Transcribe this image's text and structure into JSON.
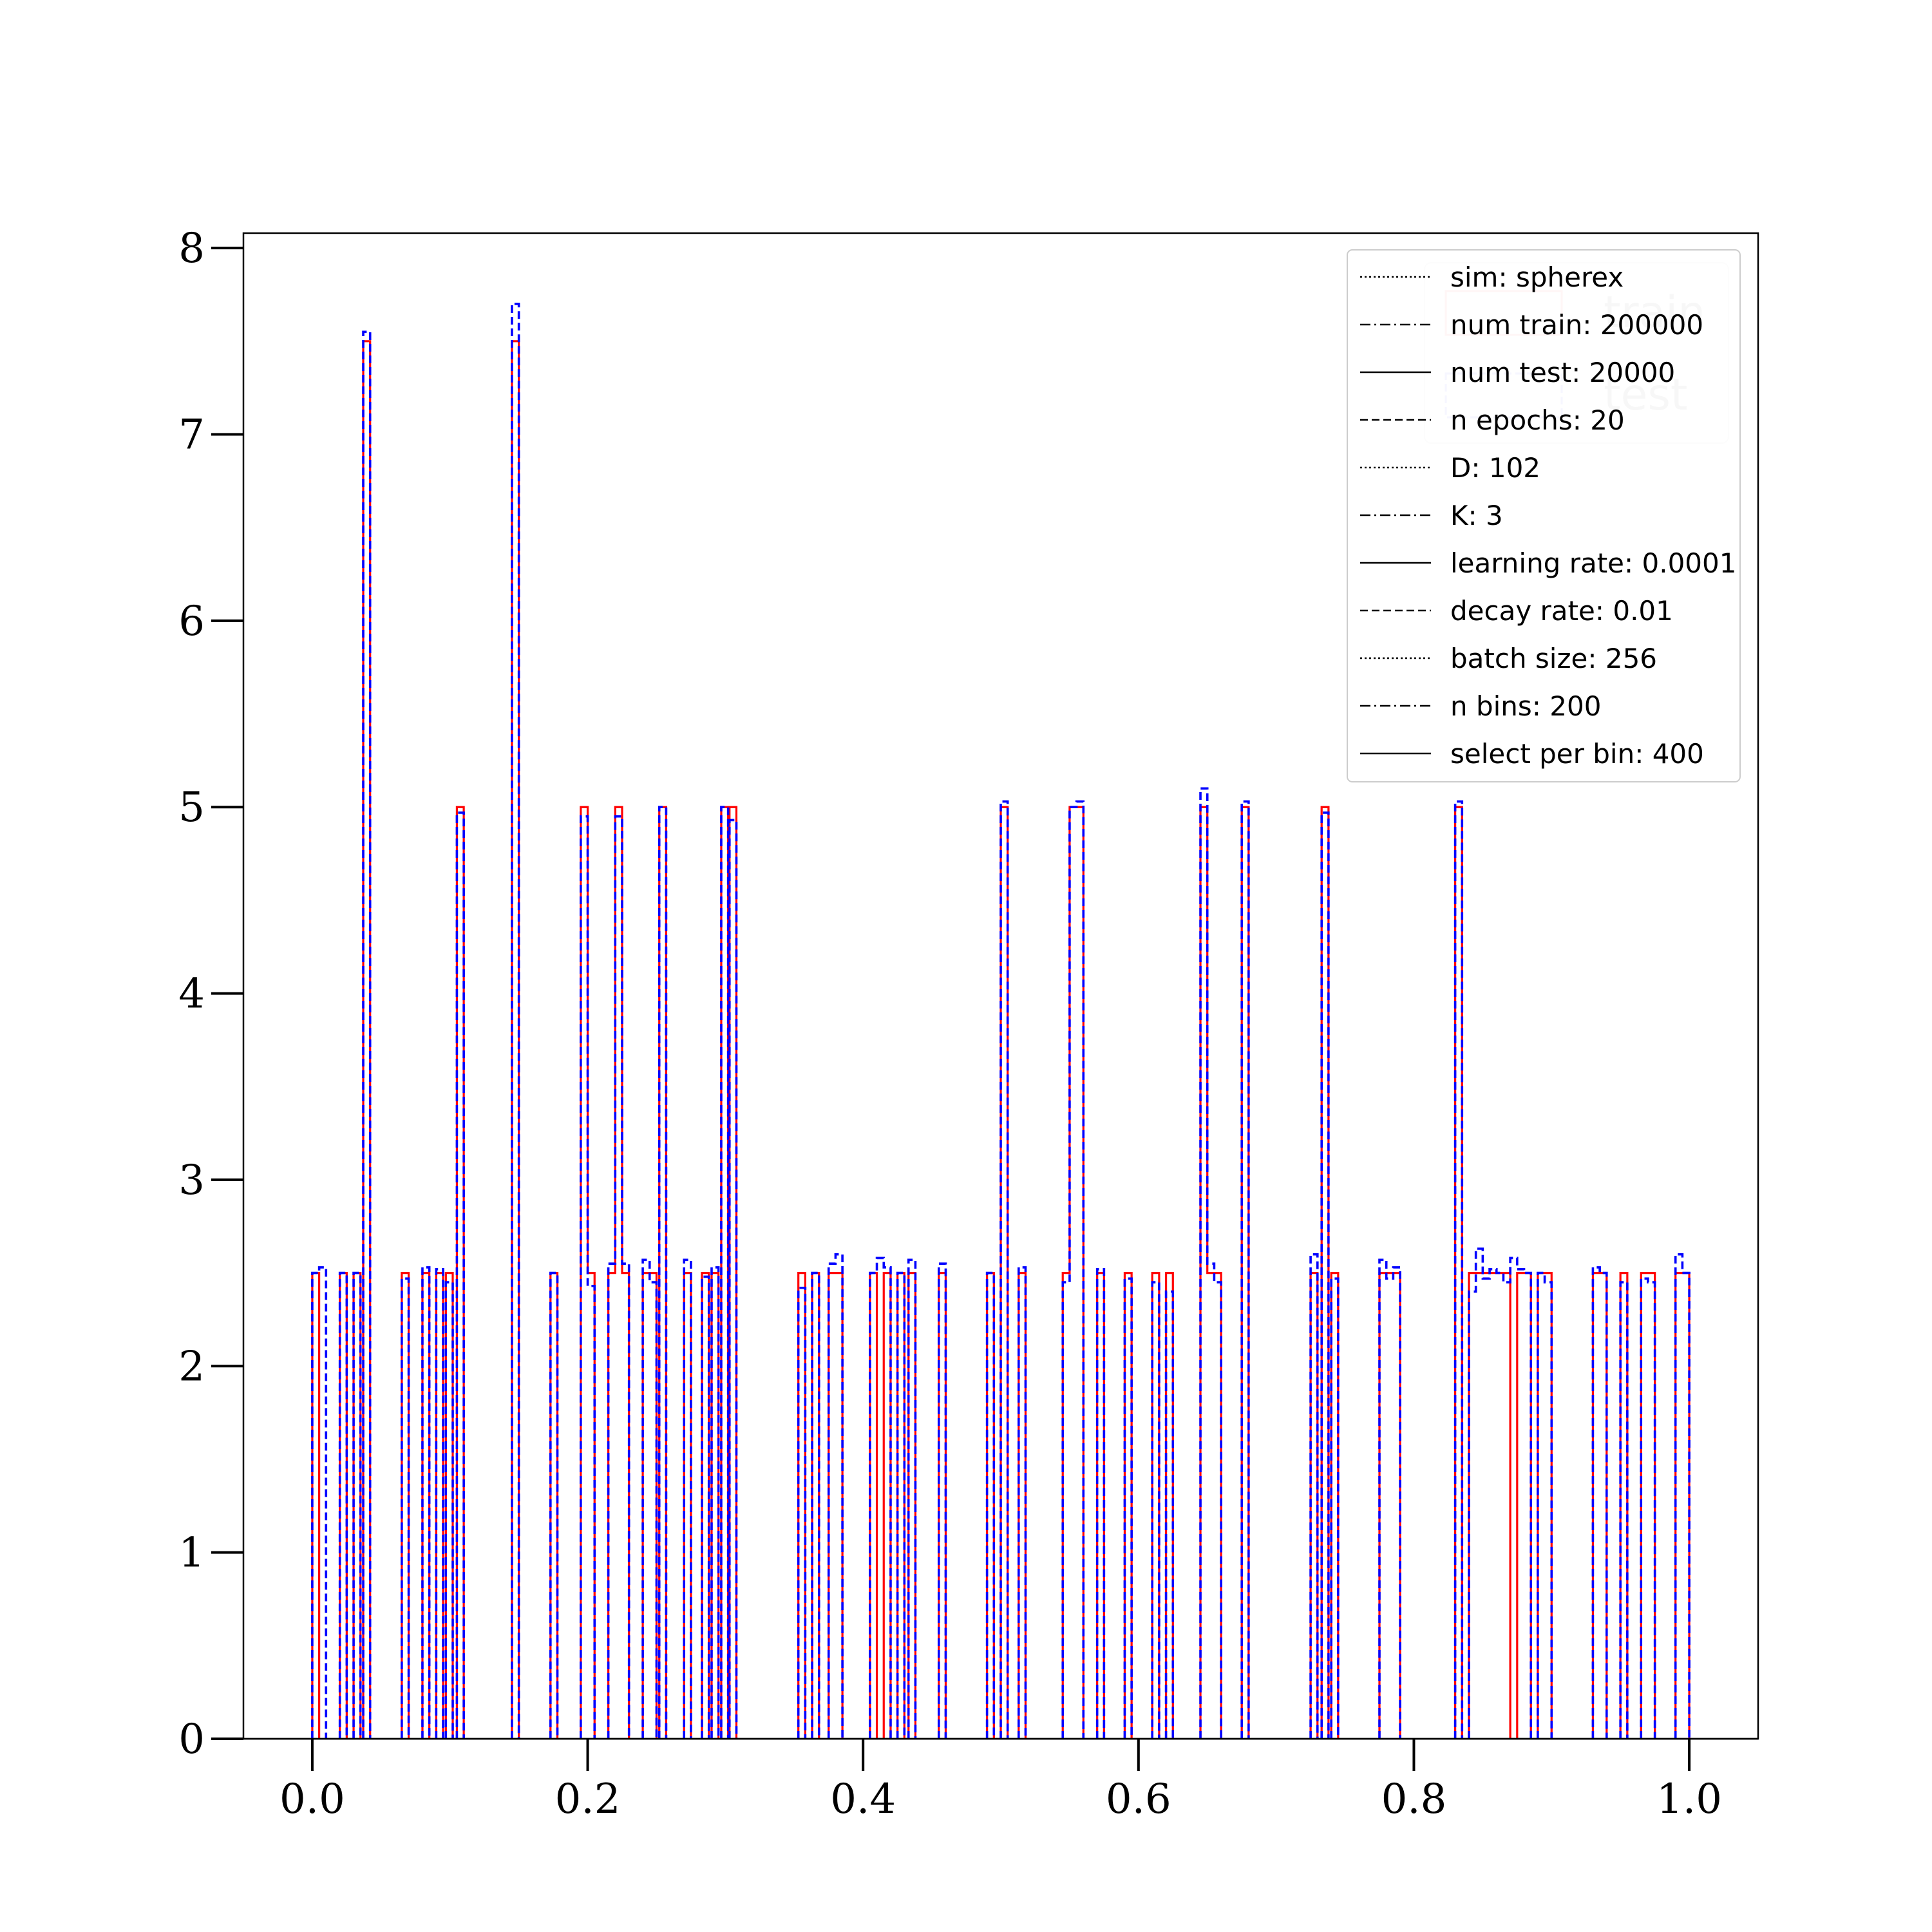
{
  "chart_data": {
    "type": "histogram",
    "x_axis": {
      "range": [
        -0.05,
        1.05
      ],
      "ticks": [
        0.0,
        0.2,
        0.4,
        0.6,
        0.8,
        1.0
      ],
      "tick_labels": [
        "0.0",
        "0.2",
        "0.4",
        "0.6",
        "0.8",
        "1.0"
      ]
    },
    "y_axis": {
      "range": [
        0,
        8.08
      ],
      "ticks": [
        0,
        1,
        2,
        3,
        4,
        5,
        6,
        7,
        8
      ],
      "tick_labels": [
        "0",
        "1",
        "2",
        "3",
        "4",
        "5",
        "6",
        "7",
        "8"
      ]
    },
    "grid": false,
    "bin_width": 0.005,
    "series": [
      {
        "name": "train",
        "color": "#ff0000",
        "line_style": "solid",
        "bins": [
          [
            0.0,
            2.5
          ],
          [
            0.02,
            2.5
          ],
          [
            0.03,
            2.5
          ],
          [
            0.037,
            7.5
          ],
          [
            0.065,
            2.5
          ],
          [
            0.08,
            2.5
          ],
          [
            0.09,
            2.5
          ],
          [
            0.097,
            2.5
          ],
          [
            0.105,
            5.0
          ],
          [
            0.145,
            7.5
          ],
          [
            0.173,
            2.5
          ],
          [
            0.195,
            5.0
          ],
          [
            0.2,
            2.5
          ],
          [
            0.215,
            2.5
          ],
          [
            0.22,
            5.0
          ],
          [
            0.225,
            2.5
          ],
          [
            0.24,
            2.5
          ],
          [
            0.245,
            2.5
          ],
          [
            0.252,
            5.0
          ],
          [
            0.27,
            2.5
          ],
          [
            0.283,
            2.5
          ],
          [
            0.29,
            2.5
          ],
          [
            0.297,
            5.0
          ],
          [
            0.303,
            5.0
          ],
          [
            0.353,
            2.5
          ],
          [
            0.363,
            2.5
          ],
          [
            0.375,
            2.5
          ],
          [
            0.38,
            2.5
          ],
          [
            0.405,
            2.5
          ],
          [
            0.415,
            2.5
          ],
          [
            0.425,
            2.5
          ],
          [
            0.433,
            2.5
          ],
          [
            0.455,
            2.5
          ],
          [
            0.49,
            2.5
          ],
          [
            0.5,
            5.0
          ],
          [
            0.513,
            2.5
          ],
          [
            0.545,
            2.5
          ],
          [
            0.55,
            5.0
          ],
          [
            0.555,
            5.0
          ],
          [
            0.57,
            2.5
          ],
          [
            0.59,
            2.5
          ],
          [
            0.61,
            2.5
          ],
          [
            0.62,
            2.5
          ],
          [
            0.645,
            5.0
          ],
          [
            0.65,
            2.5
          ],
          [
            0.655,
            2.5
          ],
          [
            0.675,
            5.0
          ],
          [
            0.725,
            2.5
          ],
          [
            0.733,
            5.0
          ],
          [
            0.74,
            2.5
          ],
          [
            0.775,
            2.5
          ],
          [
            0.78,
            2.5
          ],
          [
            0.785,
            2.5
          ],
          [
            0.83,
            5.0
          ],
          [
            0.84,
            2.5
          ],
          [
            0.845,
            2.5
          ],
          [
            0.85,
            2.5
          ],
          [
            0.855,
            2.5
          ],
          [
            0.86,
            2.5
          ],
          [
            0.865,
            2.5
          ],
          [
            0.875,
            2.5
          ],
          [
            0.88,
            2.5
          ],
          [
            0.89,
            2.5
          ],
          [
            0.895,
            2.5
          ],
          [
            0.93,
            2.5
          ],
          [
            0.935,
            2.5
          ],
          [
            0.95,
            2.5
          ],
          [
            0.965,
            2.5
          ],
          [
            0.97,
            2.5
          ],
          [
            0.99,
            2.5
          ],
          [
            0.995,
            2.5
          ]
        ]
      },
      {
        "name": "test",
        "color": "#0000ff",
        "line_style": "dashed",
        "bins": [
          [
            0.0,
            2.5
          ],
          [
            0.005,
            2.53
          ],
          [
            0.02,
            2.5
          ],
          [
            0.03,
            2.5
          ],
          [
            0.037,
            7.55
          ],
          [
            0.065,
            2.47
          ],
          [
            0.08,
            2.53
          ],
          [
            0.09,
            2.52
          ],
          [
            0.097,
            2.45
          ],
          [
            0.105,
            4.97
          ],
          [
            0.145,
            7.7
          ],
          [
            0.173,
            2.5
          ],
          [
            0.195,
            4.95
          ],
          [
            0.2,
            2.43
          ],
          [
            0.215,
            2.55
          ],
          [
            0.22,
            4.95
          ],
          [
            0.225,
            2.55
          ],
          [
            0.24,
            2.57
          ],
          [
            0.245,
            2.45
          ],
          [
            0.252,
            5.0
          ],
          [
            0.27,
            2.57
          ],
          [
            0.283,
            2.48
          ],
          [
            0.29,
            2.53
          ],
          [
            0.297,
            5.0
          ],
          [
            0.303,
            4.93
          ],
          [
            0.353,
            2.42
          ],
          [
            0.363,
            2.5
          ],
          [
            0.375,
            2.55
          ],
          [
            0.38,
            2.6
          ],
          [
            0.405,
            2.5
          ],
          [
            0.41,
            2.58
          ],
          [
            0.415,
            2.53
          ],
          [
            0.425,
            2.5
          ],
          [
            0.433,
            2.57
          ],
          [
            0.455,
            2.55
          ],
          [
            0.49,
            2.5
          ],
          [
            0.5,
            5.03
          ],
          [
            0.513,
            2.53
          ],
          [
            0.545,
            2.45
          ],
          [
            0.55,
            5.0
          ],
          [
            0.555,
            5.03
          ],
          [
            0.57,
            2.52
          ],
          [
            0.59,
            2.47
          ],
          [
            0.61,
            2.45
          ],
          [
            0.62,
            2.4
          ],
          [
            0.645,
            5.1
          ],
          [
            0.65,
            2.55
          ],
          [
            0.655,
            2.45
          ],
          [
            0.675,
            5.03
          ],
          [
            0.725,
            2.6
          ],
          [
            0.733,
            4.97
          ],
          [
            0.74,
            2.47
          ],
          [
            0.775,
            2.57
          ],
          [
            0.78,
            2.47
          ],
          [
            0.785,
            2.53
          ],
          [
            0.83,
            5.03
          ],
          [
            0.84,
            2.4
          ],
          [
            0.845,
            2.63
          ],
          [
            0.85,
            2.47
          ],
          [
            0.855,
            2.52
          ],
          [
            0.86,
            2.5
          ],
          [
            0.865,
            2.45
          ],
          [
            0.87,
            2.58
          ],
          [
            0.875,
            2.52
          ],
          [
            0.88,
            2.5
          ],
          [
            0.89,
            2.5
          ],
          [
            0.895,
            2.45
          ],
          [
            0.93,
            2.53
          ],
          [
            0.935,
            2.5
          ],
          [
            0.95,
            2.45
          ],
          [
            0.965,
            2.47
          ],
          [
            0.97,
            2.45
          ],
          [
            0.99,
            2.6
          ],
          [
            0.995,
            2.5
          ]
        ]
      }
    ]
  },
  "legend": {
    "placement": "upper right",
    "entries": [
      {
        "label": "sim: spherex",
        "style": "dotted"
      },
      {
        "label": "num train: 200000",
        "style": "dashdot"
      },
      {
        "label": "num test: 20000",
        "style": "solid"
      },
      {
        "label": "n epochs: 20",
        "style": "dashed"
      },
      {
        "label": "D: 102",
        "style": "dotted"
      },
      {
        "label": "K: 3",
        "style": "dashdot"
      },
      {
        "label": "learning rate: 0.0001",
        "style": "solid"
      },
      {
        "label": "decay rate: 0.01",
        "style": "dashed"
      },
      {
        "label": "batch size: 256",
        "style": "dotted"
      },
      {
        "label": "n bins: 200",
        "style": "dashdot"
      },
      {
        "label": "select per bin: 400",
        "style": "solid"
      }
    ]
  },
  "faint_legend": {
    "placement": "upper right, behind main legend",
    "entries": [
      {
        "label": "train",
        "color": "#ff0000",
        "style": "solid"
      },
      {
        "label": "test",
        "color": "#0000ff",
        "style": "dashed"
      }
    ]
  }
}
